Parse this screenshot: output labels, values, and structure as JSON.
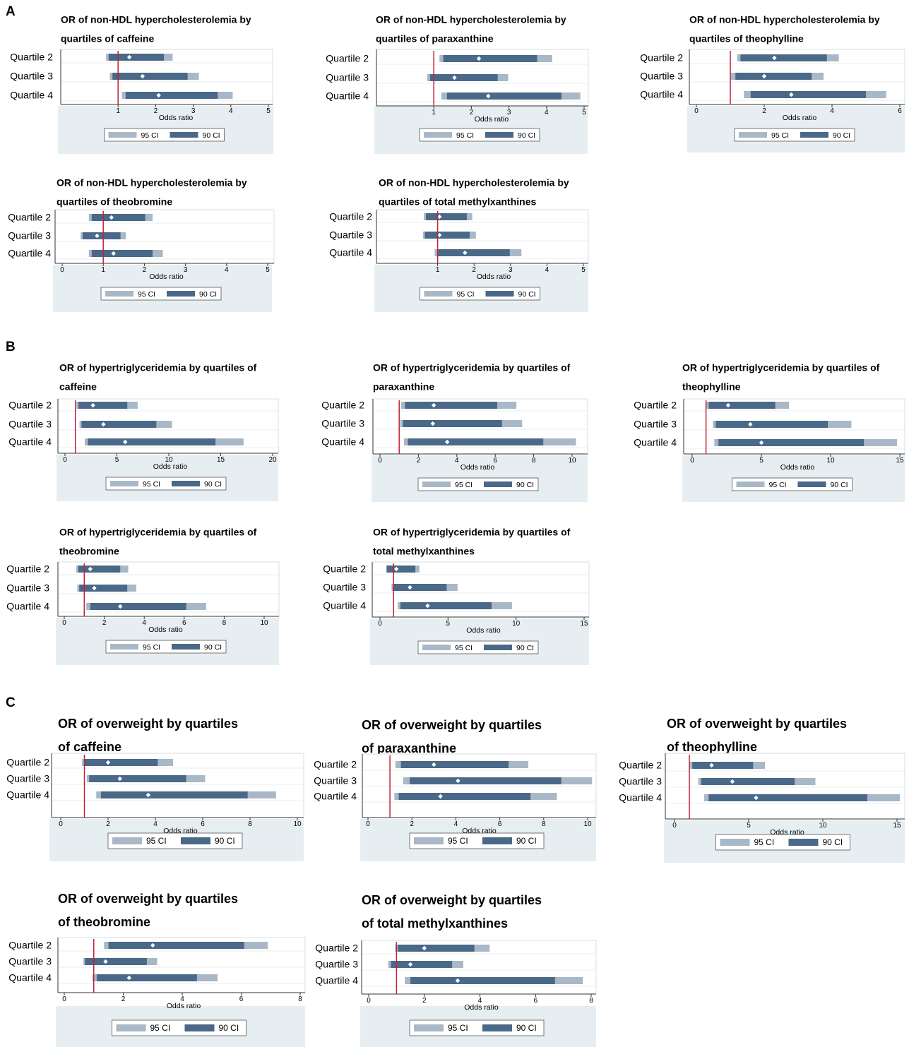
{
  "panel_letters": [
    "A",
    "B",
    "C"
  ],
  "chart_data": [
    {
      "type": "interval",
      "panel": "A",
      "title_lines": [
        "OR of non-HDL hypercholesterolemia by",
        "quartiles of caffeine"
      ],
      "xlabel": "Odds ratio",
      "xlim": [
        0,
        5
      ],
      "ticks": [
        1,
        2,
        3,
        4,
        5
      ],
      "tick_labels": [
        "1",
        "2",
        "3",
        "4",
        "5"
      ],
      "reference_line": 1,
      "legend": [
        "95 CI",
        "90 CI"
      ],
      "categories": [
        "Quartile 2",
        "Quartile 3",
        "Quartile 4"
      ],
      "or": [
        1.3,
        1.65,
        2.08
      ],
      "ci90": [
        [
          0.75,
          2.22
        ],
        [
          0.85,
          2.85
        ],
        [
          1.2,
          3.65
        ]
      ],
      "ci95": [
        [
          0.68,
          2.45
        ],
        [
          0.78,
          3.15
        ],
        [
          1.1,
          4.05
        ]
      ]
    },
    {
      "type": "interval",
      "panel": "A",
      "title_lines": [
        "OR of non-HDL hypercholesterolemia by",
        "quartiles of paraxanthine"
      ],
      "xlabel": "Odds ratio",
      "xlim": [
        0,
        5
      ],
      "ticks": [
        1,
        2,
        3,
        4,
        5
      ],
      "tick_labels": [
        "1",
        "2",
        "3",
        "4",
        "5"
      ],
      "reference_line": 1,
      "legend": [
        "95 CI",
        "90 CI"
      ],
      "categories": [
        "Quartile 2",
        "Quartile 3",
        "Quartile 4"
      ],
      "or": [
        2.2,
        1.55,
        2.45
      ],
      "ci90": [
        [
          1.25,
          3.75
        ],
        [
          0.9,
          2.7
        ],
        [
          1.35,
          4.4
        ]
      ],
      "ci95": [
        [
          1.15,
          4.15
        ],
        [
          0.82,
          2.98
        ],
        [
          1.2,
          4.9
        ]
      ]
    },
    {
      "type": "interval",
      "panel": "A",
      "title_lines": [
        "OR of non-HDL hypercholesterolemia by",
        "quartiles of theophylline"
      ],
      "xlabel": "Odds ratio",
      "xlim": [
        0,
        6
      ],
      "ticks": [
        0,
        2,
        4,
        6
      ],
      "tick_labels": [
        "0",
        "2",
        "4",
        "6"
      ],
      "reference_line": 1,
      "legend": [
        "95 CI",
        "90 CI"
      ],
      "categories": [
        "Quartile 2",
        "Quartile 3",
        "Quartile 4"
      ],
      "or": [
        2.3,
        2.0,
        2.8
      ],
      "ci90": [
        [
          1.3,
          3.85
        ],
        [
          1.15,
          3.4
        ],
        [
          1.6,
          5.0
        ]
      ],
      "ci95": [
        [
          1.2,
          4.2
        ],
        [
          1.0,
          3.75
        ],
        [
          1.4,
          5.6
        ]
      ]
    },
    {
      "type": "interval",
      "panel": "A",
      "title_lines": [
        "OR of non-HDL hypercholesterolemia by",
        "quartiles of theobromine"
      ],
      "xlabel": "Odds ratio",
      "xlim": [
        0,
        5
      ],
      "ticks": [
        0,
        1,
        2,
        3,
        4,
        5
      ],
      "tick_labels": [
        "0",
        "1",
        "2",
        "3",
        "4",
        "5"
      ],
      "reference_line": 1,
      "legend": [
        "95 CI",
        "90 CI"
      ],
      "categories": [
        "Quartile 2",
        "Quartile 3",
        "Quartile 4"
      ],
      "or": [
        1.2,
        0.85,
        1.25
      ],
      "ci90": [
        [
          0.72,
          2.02
        ],
        [
          0.5,
          1.42
        ],
        [
          0.72,
          2.2
        ]
      ],
      "ci95": [
        [
          0.65,
          2.2
        ],
        [
          0.45,
          1.55
        ],
        [
          0.65,
          2.45
        ]
      ]
    },
    {
      "type": "interval",
      "panel": "A",
      "title_lines": [
        "OR of non-HDL hypercholesterolemia by",
        "quartiles of total methylxanthines"
      ],
      "xlabel": "Odds ratio",
      "xlim": [
        0,
        5
      ],
      "ticks": [
        1,
        2,
        3,
        4,
        5
      ],
      "tick_labels": [
        "1",
        "2",
        "3",
        "4",
        "5"
      ],
      "reference_line": 1,
      "legend": [
        "95 CI",
        "90 CI"
      ],
      "categories": [
        "Quartile 2",
        "Quartile 3",
        "Quartile 4"
      ],
      "or": [
        1.05,
        1.05,
        1.75
      ],
      "ci90": [
        [
          0.68,
          1.8
        ],
        [
          0.65,
          1.88
        ],
        [
          1.0,
          2.98
        ]
      ],
      "ci95": [
        [
          0.62,
          1.95
        ],
        [
          0.6,
          2.05
        ],
        [
          0.92,
          3.3
        ]
      ]
    },
    {
      "type": "interval",
      "panel": "B",
      "title_lines": [
        "OR of hypertriglyceridemia by quartiles of",
        "caffeine"
      ],
      "xlabel": "Odds ratio",
      "xlim": [
        0,
        20
      ],
      "ticks": [
        0,
        5,
        10,
        15,
        20
      ],
      "tick_labels": [
        "0",
        "5",
        "10",
        "15",
        "20"
      ],
      "reference_line": 1,
      "legend": [
        "95 CI",
        "90 CI"
      ],
      "categories": [
        "Quartile 2",
        "Quartile 3",
        "Quartile 4"
      ],
      "or": [
        2.7,
        3.7,
        5.8
      ],
      "ci90": [
        [
          1.3,
          6.0
        ],
        [
          1.6,
          8.8
        ],
        [
          2.2,
          14.5
        ]
      ],
      "ci95": [
        [
          1.1,
          7.0
        ],
        [
          1.4,
          10.3
        ],
        [
          1.9,
          17.2
        ]
      ]
    },
    {
      "type": "interval",
      "panel": "B",
      "title_lines": [
        "OR of hypertriglyceridemia by quartiles of",
        "paraxanthine"
      ],
      "xlabel": "Odds ratio",
      "xlim": [
        0,
        10
      ],
      "ticks": [
        0,
        2,
        4,
        6,
        8,
        10
      ],
      "tick_labels": [
        "0",
        "2",
        "4",
        "6",
        "8",
        "10"
      ],
      "reference_line": 1,
      "legend": [
        "95 CI",
        "90 CI"
      ],
      "categories": [
        "Quartile 2",
        "Quartile 3",
        "Quartile 4"
      ],
      "or": [
        2.8,
        2.75,
        3.5
      ],
      "ci90": [
        [
          1.3,
          6.1
        ],
        [
          1.2,
          6.35
        ],
        [
          1.45,
          8.5
        ]
      ],
      "ci95": [
        [
          1.1,
          7.1
        ],
        [
          1.05,
          7.4
        ],
        [
          1.25,
          10.2
        ]
      ]
    },
    {
      "type": "interval",
      "panel": "B",
      "title_lines": [
        "OR of hypertriglyceridemia by quartiles of",
        "theophylline"
      ],
      "xlabel": "Odds ratio",
      "xlim": [
        0,
        15
      ],
      "ticks": [
        0,
        5,
        10,
        15
      ],
      "tick_labels": [
        "0",
        "5",
        "10",
        "15"
      ],
      "reference_line": 1,
      "legend": [
        "95 CI",
        "90 CI"
      ],
      "categories": [
        "Quartile 2",
        "Quartile 3",
        "Quartile 4"
      ],
      "or": [
        2.6,
        4.2,
        5.0
      ],
      "ci90": [
        [
          1.2,
          6.0
        ],
        [
          1.7,
          9.8
        ],
        [
          1.9,
          12.4
        ]
      ],
      "ci95": [
        [
          1.0,
          7.0
        ],
        [
          1.5,
          11.5
        ],
        [
          1.6,
          14.8
        ]
      ]
    },
    {
      "type": "interval",
      "panel": "B",
      "title_lines": [
        "OR of hypertriglyceridemia by quartiles of",
        "theobromine"
      ],
      "xlabel": "Odds ratio",
      "xlim": [
        0,
        10
      ],
      "ticks": [
        0,
        2,
        4,
        6,
        8,
        10
      ],
      "tick_labels": [
        "0",
        "2",
        "4",
        "6",
        "8",
        "10"
      ],
      "reference_line": 1,
      "legend": [
        "95 CI",
        "90 CI"
      ],
      "categories": [
        "Quartile 2",
        "Quartile 3",
        "Quartile 4"
      ],
      "or": [
        1.3,
        1.5,
        2.8
      ],
      "ci90": [
        [
          0.7,
          2.8
        ],
        [
          0.75,
          3.15
        ],
        [
          1.3,
          6.1
        ]
      ],
      "ci95": [
        [
          0.6,
          3.2
        ],
        [
          0.65,
          3.6
        ],
        [
          1.1,
          7.1
        ]
      ]
    },
    {
      "type": "interval",
      "panel": "B",
      "title_lines": [
        "OR of hypertriglyceridemia by quartiles of",
        "total methylxanthines"
      ],
      "xlabel": "Odds ratio",
      "xlim": [
        0,
        15
      ],
      "ticks": [
        0,
        5,
        10,
        15
      ],
      "tick_labels": [
        "0",
        "5",
        "10",
        "15"
      ],
      "reference_line": 1,
      "legend": [
        "95 CI",
        "90 CI"
      ],
      "categories": [
        "Quartile 2",
        "Quartile 3",
        "Quartile 4"
      ],
      "or": [
        1.2,
        2.2,
        3.5
      ],
      "ci90": [
        [
          0.5,
          2.6
        ],
        [
          0.95,
          4.9
        ],
        [
          1.5,
          8.2
        ]
      ],
      "ci95": [
        [
          0.45,
          2.9
        ],
        [
          0.85,
          5.7
        ],
        [
          1.3,
          9.7
        ]
      ]
    },
    {
      "type": "interval",
      "panel": "C",
      "title_lines": [
        "OR of overweight by quartiles",
        "of caffeine"
      ],
      "xlabel": "Odds ratio",
      "xlim": [
        0,
        10
      ],
      "ticks": [
        0,
        2,
        4,
        6,
        8,
        10
      ],
      "tick_labels": [
        "0",
        "2",
        "4",
        "6",
        "8",
        "10"
      ],
      "reference_line": 1,
      "legend": [
        "95 CI",
        "90 CI"
      ],
      "categories": [
        "Quartile 2",
        "Quartile 3",
        "Quartile 4"
      ],
      "or": [
        2.0,
        2.5,
        3.7
      ],
      "ci90": [
        [
          1.0,
          4.1
        ],
        [
          1.2,
          5.3
        ],
        [
          1.7,
          7.9
        ]
      ],
      "ci95": [
        [
          0.9,
          4.75
        ],
        [
          1.1,
          6.1
        ],
        [
          1.5,
          9.1
        ]
      ]
    },
    {
      "type": "interval",
      "panel": "C",
      "title_lines": [
        "OR of overweight by quartiles",
        "of paraxanthine"
      ],
      "xlabel": "Odds ratio",
      "xlim": [
        0,
        10
      ],
      "ticks": [
        0,
        2,
        4,
        6,
        8,
        10
      ],
      "tick_labels": [
        "0",
        "2",
        "4",
        "6",
        "8",
        "10"
      ],
      "reference_line": 1,
      "legend": [
        "95 CI",
        "90 CI"
      ],
      "categories": [
        "Quartile 2",
        "Quartile 3",
        "Quartile 4"
      ],
      "or": [
        3.0,
        4.1,
        3.3
      ],
      "ci90": [
        [
          1.5,
          6.4
        ],
        [
          1.9,
          8.8
        ],
        [
          1.4,
          7.4
        ]
      ],
      "ci95": [
        [
          1.25,
          7.3
        ],
        [
          1.6,
          10.2
        ],
        [
          1.2,
          8.6
        ]
      ]
    },
    {
      "type": "interval",
      "panel": "C",
      "title_lines": [
        "OR of overweight by quartiles",
        "of theophylline"
      ],
      "xlabel": "Odds ratio",
      "xlim": [
        0,
        15
      ],
      "ticks": [
        0,
        5,
        10,
        15
      ],
      "tick_labels": [
        "0",
        "5",
        "10",
        "15"
      ],
      "reference_line": 1,
      "legend": [
        "95 CI",
        "90 CI"
      ],
      "categories": [
        "Quartile 2",
        "Quartile 3",
        "Quartile 4"
      ],
      "or": [
        2.5,
        3.9,
        5.5
      ],
      "ci90": [
        [
          1.2,
          5.3
        ],
        [
          1.8,
          8.1
        ],
        [
          2.3,
          13.0
        ]
      ],
      "ci95": [
        [
          1.0,
          6.1
        ],
        [
          1.6,
          9.5
        ],
        [
          2.0,
          15.2
        ]
      ]
    },
    {
      "type": "interval",
      "panel": "C",
      "title_lines": [
        "OR of overweight by quartiles",
        "of theobromine"
      ],
      "xlabel": "Odds ratio",
      "xlim": [
        0,
        8
      ],
      "ticks": [
        0,
        2,
        4,
        6,
        8
      ],
      "tick_labels": [
        "0",
        "2",
        "4",
        "6",
        "8"
      ],
      "reference_line": 1,
      "legend": [
        "95 CI",
        "90 CI"
      ],
      "categories": [
        "Quartile 2",
        "Quartile 3",
        "Quartile 4"
      ],
      "or": [
        3.0,
        1.4,
        2.2
      ],
      "ci90": [
        [
          1.5,
          6.1
        ],
        [
          0.7,
          2.8
        ],
        [
          1.1,
          4.5
        ]
      ],
      "ci95": [
        [
          1.35,
          6.9
        ],
        [
          0.65,
          3.15
        ],
        [
          0.95,
          5.2
        ]
      ]
    },
    {
      "type": "interval",
      "panel": "C",
      "title_lines": [
        "OR of overweight by quartiles",
        "of total methylxanthines"
      ],
      "xlabel": "Odds ratio",
      "xlim": [
        0,
        8
      ],
      "ticks": [
        0,
        2,
        4,
        6,
        8
      ],
      "tick_labels": [
        "0",
        "2",
        "4",
        "6",
        "8"
      ],
      "reference_line": 1,
      "legend": [
        "95 CI",
        "90 CI"
      ],
      "categories": [
        "Quartile 2",
        "Quartile 3",
        "Quartile 4"
      ],
      "or": [
        2.0,
        1.5,
        3.2
      ],
      "ci90": [
        [
          1.05,
          3.8
        ],
        [
          0.8,
          3.0
        ],
        [
          1.5,
          6.7
        ]
      ],
      "ci95": [
        [
          0.95,
          4.35
        ],
        [
          0.7,
          3.4
        ],
        [
          1.3,
          7.7
        ]
      ]
    }
  ],
  "colors": {
    "ci90": "#4a6887",
    "ci95": "#a8b8c7",
    "point": "#ffffff",
    "reference": "#c0213a",
    "background": "#e6eef2",
    "axis": "#333333"
  }
}
